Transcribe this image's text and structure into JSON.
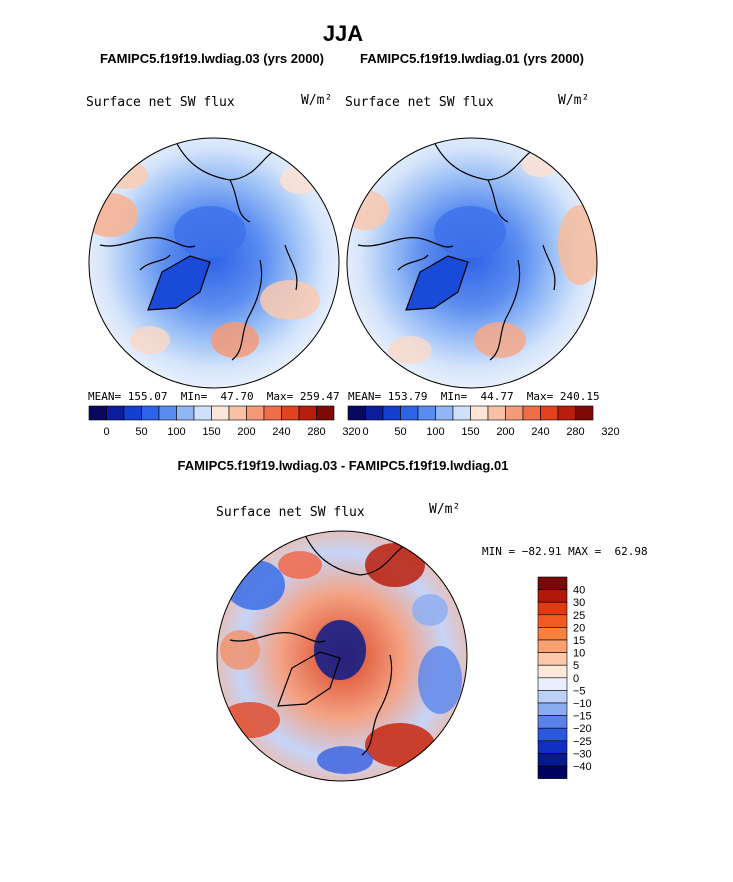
{
  "chart_data": {
    "type": "polar-contour-map",
    "season_title": "JJA",
    "colors": {
      "edge": "#000000",
      "land": "#111111",
      "bar_palette_top": [
        "#08085e",
        "#0c1c9a",
        "#1440d0",
        "#2c64e8",
        "#5a8cf0",
        "#90b6f6",
        "#cfe0fb",
        "#fde6d8",
        "#f8c0a4",
        "#f49a78",
        "#ef6e48",
        "#e2421e",
        "#b81e0c",
        "#7e0a08"
      ],
      "bar_palette_diff": [
        "#7a0a0a",
        "#b01808",
        "#e03a12",
        "#f25a22",
        "#f6803e",
        "#f9a070",
        "#fcc8a8",
        "#fde8da",
        "#e8eefc",
        "#bcd0f8",
        "#8cacf2",
        "#5a82ea",
        "#2c58e0",
        "#1030c4",
        "#061a8c",
        "#000060"
      ]
    },
    "panels": [
      {
        "id": "left",
        "case": "FAMIPC5.f19f19.lwdiag.03 (yrs 2000)",
        "variable": "Surface net SW flux",
        "units": "W/m²",
        "stats": "MEAN= 155.07  MIn=  47.70  Max= 259.47",
        "colorbar_labels": [
          "0",
          "50",
          "100",
          "150",
          "200",
          "240",
          "280",
          "320"
        ]
      },
      {
        "id": "right",
        "case": "FAMIPC5.f19f19.lwdiag.01 (yrs 2000)",
        "variable": "Surface net SW flux",
        "units": "W/m²",
        "stats": "MEAN= 153.79  MIn=  44.77  Max= 240.15",
        "colorbar_labels": [
          "0",
          "50",
          "100",
          "150",
          "200",
          "240",
          "280",
          "320"
        ]
      }
    ],
    "difference": {
      "title": "FAMIPC5.f19f19.lwdiag.03 - FAMIPC5.f19f19.lwdiag.01",
      "variable": "Surface net SW flux",
      "units": "W/m²",
      "minmax": "MIN = −82.91 MAX =  62.98",
      "colorbar_labels": [
        "40",
        "30",
        "25",
        "20",
        "15",
        "10",
        "5",
        "0",
        "−5",
        "−10",
        "−15",
        "−20",
        "−25",
        "−30",
        "−40"
      ]
    }
  }
}
